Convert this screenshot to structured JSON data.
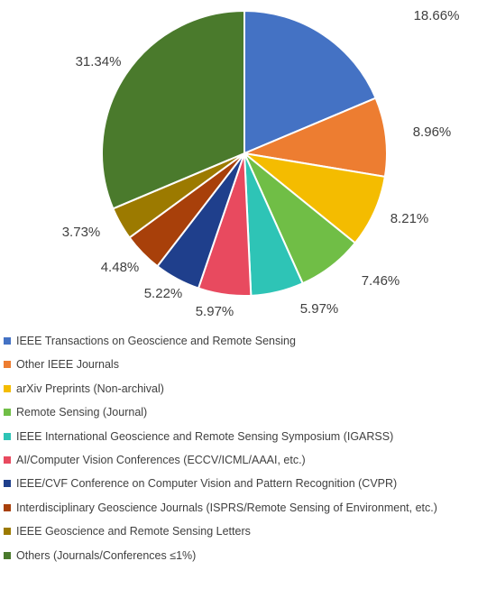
{
  "chart_data": {
    "type": "pie",
    "legend_position": "bottom",
    "slices": [
      {
        "name": "IEEE Transactions on Geoscience and Remote Sensing",
        "value": 18.66,
        "label": "18.66%",
        "color": "#4472C4"
      },
      {
        "name": "Other IEEE Journals",
        "value": 8.96,
        "label": "8.96%",
        "color": "#ED7D31"
      },
      {
        "name": "arXiv Preprints (Non-archival)",
        "value": 8.21,
        "label": "8.21%",
        "color": "#F4BC00"
      },
      {
        "name": " Remote Sensing (Journal)",
        "value": 7.46,
        "label": "7.46%",
        "color": "#70BE46"
      },
      {
        "name": "IEEE International Geoscience and Remote Sensing Symposium (IGARSS)",
        "value": 5.97,
        "label": "5.97%",
        "color": "#2EC4B6"
      },
      {
        "name": "AI/Computer Vision Conferences (ECCV/ICML/AAAI, etc.)",
        "value": 5.97,
        "label": "5.97%",
        "color": "#E84A5F"
      },
      {
        "name": "IEEE/CVF Conference on Computer Vision and Pattern Recognition (CVPR)",
        "value": 5.22,
        "label": "5.22%",
        "color": "#1F3F8C"
      },
      {
        "name": "Interdisciplinary Geoscience Journals (ISPRS/Remote Sensing of Environment, etc.)",
        "value": 4.48,
        "label": "4.48%",
        "color": "#A8400A"
      },
      {
        "name": " IEEE Geoscience and Remote Sensing Letters",
        "value": 3.73,
        "label": "3.73%",
        "color": "#9C7A00"
      },
      {
        "name": "Others (Journals/Conferences ≤1%)",
        "value": 31.34,
        "label": "31.34%",
        "color": "#4A7A2C"
      }
    ]
  }
}
